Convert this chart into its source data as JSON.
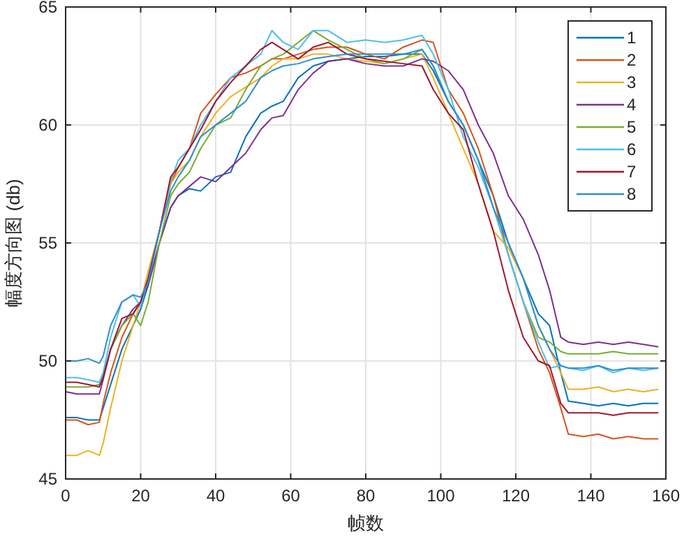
{
  "chart_data": {
    "type": "line",
    "xlabel": "帧数",
    "ylabel": "幅度方向图 (db)",
    "x": [
      0,
      3,
      6,
      9,
      10,
      12,
      15,
      18,
      20,
      22,
      25,
      28,
      30,
      33,
      36,
      40,
      44,
      48,
      52,
      55,
      58,
      62,
      66,
      70,
      75,
      80,
      85,
      90,
      95,
      98,
      102,
      106,
      110,
      114,
      118,
      122,
      126,
      129,
      132,
      134,
      138,
      142,
      146,
      150,
      154,
      158
    ],
    "xlim": [
      0,
      160
    ],
    "xticks": [
      0,
      20,
      40,
      60,
      80,
      100,
      120,
      140,
      160
    ],
    "ylim": [
      45,
      65
    ],
    "yticks": [
      45,
      50,
      55,
      60,
      65
    ],
    "grid": true,
    "legend": "top right",
    "line_style": "solid",
    "series": [
      {
        "name": "1",
        "color": "#0072bd",
        "values": [
          47.6,
          47.6,
          47.5,
          47.5,
          48.0,
          49.0,
          50.5,
          51.5,
          52.2,
          53.2,
          55.0,
          56.5,
          57.0,
          57.3,
          57.2,
          57.8,
          58.0,
          59.5,
          60.5,
          60.8,
          61.0,
          62.0,
          62.5,
          62.7,
          62.8,
          62.9,
          62.9,
          63.0,
          63.0,
          62.3,
          61.0,
          60.0,
          58.5,
          57.0,
          55.0,
          53.5,
          52.0,
          51.5,
          49.5,
          48.3,
          48.2,
          48.1,
          48.2,
          48.1,
          48.2,
          48.2
        ]
      },
      {
        "name": "2",
        "color": "#d95319",
        "values": [
          47.5,
          47.5,
          47.3,
          47.4,
          48.2,
          49.5,
          51.0,
          52.0,
          52.5,
          53.5,
          55.5,
          57.5,
          58.2,
          59.0,
          60.5,
          61.3,
          62.0,
          62.2,
          62.5,
          62.8,
          62.8,
          63.0,
          63.2,
          63.3,
          63.3,
          63.0,
          62.8,
          63.3,
          63.6,
          63.5,
          61.5,
          60.5,
          59.0,
          57.0,
          54.5,
          52.5,
          50.5,
          49.5,
          48.0,
          46.9,
          46.8,
          46.9,
          46.7,
          46.8,
          46.7,
          46.7
        ]
      },
      {
        "name": "3",
        "color": "#edb120",
        "values": [
          46.0,
          46.0,
          46.2,
          46.0,
          46.5,
          48.0,
          50.0,
          51.5,
          52.5,
          53.8,
          55.5,
          57.5,
          58.0,
          58.5,
          59.5,
          60.5,
          61.2,
          61.6,
          62.0,
          62.5,
          62.8,
          62.8,
          63.0,
          63.0,
          62.8,
          62.7,
          62.6,
          62.8,
          63.0,
          62.0,
          60.5,
          59.0,
          57.5,
          55.5,
          54.8,
          53.5,
          51.5,
          50.5,
          49.5,
          48.8,
          48.8,
          48.9,
          48.7,
          48.8,
          48.7,
          48.8
        ]
      },
      {
        "name": "4",
        "color": "#7e2f8e",
        "values": [
          48.7,
          48.6,
          48.6,
          48.6,
          49.2,
          50.5,
          51.5,
          52.2,
          52.5,
          53.2,
          55.0,
          56.5,
          57.0,
          57.4,
          57.8,
          57.6,
          58.2,
          58.8,
          59.8,
          60.3,
          60.4,
          61.5,
          62.2,
          62.7,
          62.8,
          62.6,
          62.5,
          62.5,
          62.8,
          62.7,
          62.3,
          61.5,
          60.0,
          58.8,
          57.0,
          56.0,
          54.5,
          53.0,
          51.0,
          50.8,
          50.7,
          50.8,
          50.7,
          50.8,
          50.7,
          50.6
        ]
      },
      {
        "name": "5",
        "color": "#77ac30",
        "values": [
          48.9,
          48.9,
          48.9,
          49.0,
          49.4,
          50.5,
          51.5,
          52.0,
          51.5,
          52.5,
          55.0,
          57.0,
          57.5,
          58.0,
          59.0,
          60.0,
          60.3,
          61.5,
          62.5,
          62.8,
          63.0,
          63.5,
          64.0,
          63.6,
          63.2,
          62.8,
          62.6,
          62.8,
          63.2,
          62.5,
          61.0,
          60.0,
          58.5,
          56.5,
          54.5,
          52.5,
          51.0,
          50.8,
          50.4,
          50.3,
          50.3,
          50.3,
          50.4,
          50.3,
          50.3,
          50.3
        ]
      },
      {
        "name": "6",
        "color": "#4dbeee",
        "values": [
          49.3,
          49.3,
          49.2,
          49.1,
          49.5,
          51.0,
          52.5,
          52.8,
          52.3,
          53.5,
          55.5,
          57.6,
          58.5,
          59.0,
          60.0,
          61.0,
          62.0,
          62.5,
          63.0,
          64.0,
          63.5,
          63.2,
          64.0,
          64.0,
          63.5,
          63.6,
          63.5,
          63.6,
          63.8,
          63.0,
          61.5,
          59.5,
          58.2,
          56.5,
          54.5,
          52.5,
          50.8,
          49.7,
          49.8,
          49.7,
          49.6,
          49.8,
          49.5,
          49.7,
          49.6,
          49.7
        ]
      },
      {
        "name": "7",
        "color": "#a2142f",
        "values": [
          49.1,
          49.1,
          49.0,
          48.9,
          49.3,
          50.5,
          51.8,
          52.0,
          52.5,
          53.5,
          55.5,
          57.8,
          58.2,
          59.0,
          59.8,
          61.0,
          61.8,
          62.5,
          63.2,
          63.5,
          63.2,
          62.8,
          63.3,
          63.5,
          63.0,
          62.8,
          62.7,
          62.6,
          62.5,
          61.5,
          60.5,
          59.8,
          57.5,
          55.5,
          53.0,
          51.0,
          50.0,
          49.8,
          48.2,
          47.8,
          47.8,
          47.8,
          47.7,
          47.8,
          47.8,
          47.8
        ]
      },
      {
        "name": "8",
        "color": "#2a8fd4",
        "values": [
          50.0,
          50.0,
          50.1,
          49.9,
          50.2,
          51.5,
          52.5,
          52.8,
          52.7,
          53.3,
          55.5,
          57.2,
          57.8,
          58.5,
          59.5,
          60.0,
          60.5,
          61.0,
          62.0,
          62.3,
          62.5,
          62.6,
          62.8,
          62.9,
          63.0,
          63.0,
          63.0,
          63.0,
          63.2,
          62.5,
          61.0,
          60.0,
          58.5,
          56.5,
          55.0,
          53.5,
          51.5,
          50.5,
          49.8,
          49.7,
          49.7,
          49.8,
          49.6,
          49.7,
          49.7,
          49.7
        ]
      }
    ]
  }
}
